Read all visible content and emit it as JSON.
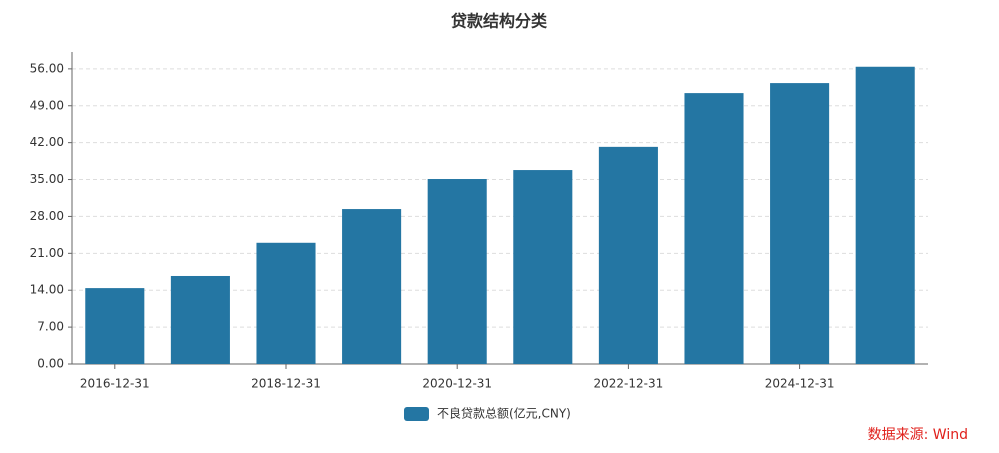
{
  "chart_data": {
    "type": "bar",
    "title": "贷款结构分类",
    "source": "数据来源: Wind",
    "categories": [
      "2016-12-31",
      null,
      "2018-12-31",
      null,
      "2020-12-31",
      null,
      "2022-12-31",
      null,
      "2024-12-31",
      null
    ],
    "series": [
      {
        "name": "不良贷款总额(亿元,CNY)",
        "color": "#2476a3",
        "values": [
          14.4,
          16.7,
          23.0,
          29.4,
          35.1,
          36.8,
          41.2,
          51.4,
          53.3,
          56.4
        ]
      }
    ],
    "ylim": [
      0,
      59.2
    ],
    "yticks": [
      {
        "value": 0,
        "label": "0.00"
      },
      {
        "value": 7,
        "label": "7.00"
      },
      {
        "value": 14,
        "label": "14.00"
      },
      {
        "value": 21,
        "label": "21.00"
      },
      {
        "value": 28,
        "label": "28.00"
      },
      {
        "value": 35,
        "label": "35.00"
      },
      {
        "value": 42,
        "label": "42.00"
      },
      {
        "value": 49,
        "label": "49.00"
      },
      {
        "value": 56,
        "label": "56.00"
      }
    ],
    "grid": true
  }
}
